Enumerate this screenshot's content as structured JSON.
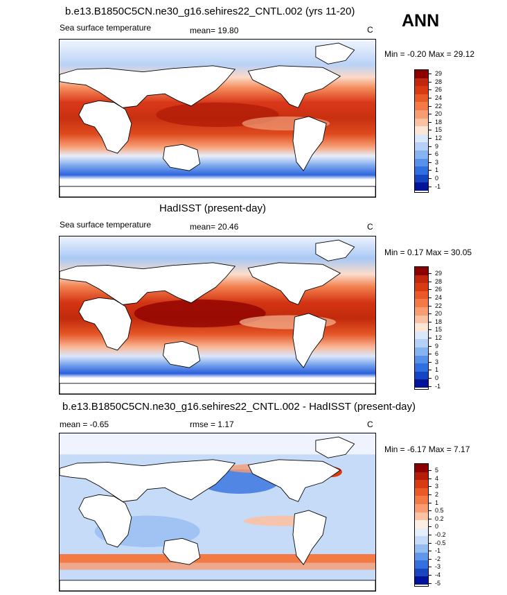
{
  "season": "ANN",
  "panels": [
    {
      "title": "b.e13.B1850C5CN.ne30_g16.sehires22_CNTL.002 (yrs 11-20)",
      "left_label": "Sea surface temperature",
      "center_label": "mean=  19.80",
      "units": "C",
      "minmax": "Min =  -0.20 Max =  29.12",
      "colorbar": {
        "labels": [
          "29",
          "28",
          "26",
          "24",
          "22",
          "20",
          "18",
          "15",
          "12",
          "9",
          "6",
          "3",
          "1",
          "0",
          "-1"
        ],
        "colors": [
          "#8b0000",
          "#c1270c",
          "#d83a12",
          "#ea5a26",
          "#f47a45",
          "#f89c72",
          "#fbc1a3",
          "#fde6d6",
          "#dae8fb",
          "#b6d1f7",
          "#86b3f1",
          "#5791ea",
          "#2f6fe0",
          "#1446c3",
          "#001399"
        ]
      }
    },
    {
      "title": "HadISST (present-day)",
      "left_label": "Sea surface temperature",
      "center_label": "mean=  20.46",
      "units": "C",
      "minmax": "Min =   0.17 Max =  30.05",
      "colorbar": {
        "labels": [
          "29",
          "28",
          "26",
          "24",
          "22",
          "20",
          "18",
          "15",
          "12",
          "9",
          "6",
          "3",
          "1",
          "0",
          "-1"
        ],
        "colors": [
          "#8b0000",
          "#c1270c",
          "#d83a12",
          "#ea5a26",
          "#f47a45",
          "#f89c72",
          "#fbc1a3",
          "#fde6d6",
          "#dae8fb",
          "#b6d1f7",
          "#86b3f1",
          "#5791ea",
          "#2f6fe0",
          "#1446c3",
          "#001399"
        ]
      }
    },
    {
      "title": "b.e13.B1850C5CN.ne30_g16.sehires22_CNTL.002 - HadISST (present-day)",
      "left_label": "mean =  -0.65",
      "center_label": "rmse =   1.17",
      "units": "C",
      "minmax": "Min =  -6.17 Max =   7.17",
      "colorbar": {
        "labels": [
          "5",
          "4",
          "3",
          "2",
          "1",
          "0.5",
          "0.2",
          "0",
          "-0.2",
          "-0.5",
          "-1",
          "-2",
          "-3",
          "-4",
          "-5"
        ],
        "colors": [
          "#8b0000",
          "#b51c0a",
          "#d83a12",
          "#ea5a26",
          "#f47a45",
          "#f89c72",
          "#fbc1a3",
          "#fdeee4",
          "#e6eefb",
          "#c6dbf8",
          "#96bdf2",
          "#6197ea",
          "#3571de",
          "#1746c0",
          "#001399"
        ]
      }
    }
  ]
}
